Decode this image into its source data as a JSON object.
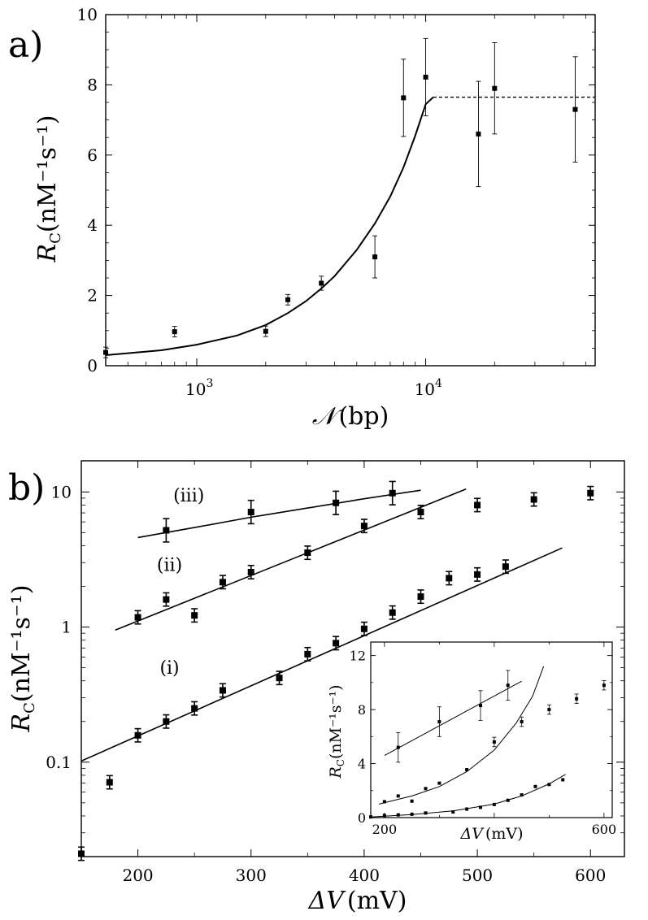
{
  "chart_data": [
    {
      "panel_label": "a)",
      "type": "scatter",
      "x_scale": "log",
      "xlabel": "𝒩 (bp)",
      "xlabel_symbol": "𝒩",
      "xlabel_unit": "(bp)",
      "ylabel_symbol": "R",
      "ylabel_sub": "C",
      "ylabel_unit": "(nM⁻¹s⁻¹)",
      "xlim": [
        400,
        55000
      ],
      "ylim": [
        0,
        10
      ],
      "yticks": [
        "0",
        "2",
        "4",
        "6",
        "8",
        "10"
      ],
      "xticks": [
        {
          "base": "10",
          "exp": "3",
          "value": 1000
        },
        {
          "base": "10",
          "exp": "4",
          "value": 10000
        }
      ],
      "grid": false,
      "points": [
        {
          "x": 400,
          "y": 0.38,
          "err": 0.15
        },
        {
          "x": 800,
          "y": 0.97,
          "err": 0.15
        },
        {
          "x": 2000,
          "y": 0.98,
          "err": 0.15
        },
        {
          "x": 2500,
          "y": 1.88,
          "err": 0.15
        },
        {
          "x": 3500,
          "y": 2.35,
          "err": 0.2
        },
        {
          "x": 6000,
          "y": 3.1,
          "err": 0.6
        },
        {
          "x": 8000,
          "y": 7.63,
          "err": 1.1
        },
        {
          "x": 10000,
          "y": 8.22,
          "err": 1.1
        },
        {
          "x": 17000,
          "y": 6.6,
          "err": 1.5
        },
        {
          "x": 20000,
          "y": 7.9,
          "err": 1.3
        },
        {
          "x": 45000,
          "y": 7.3,
          "err": 1.5
        }
      ],
      "fit_curve": [
        {
          "x": 400,
          "y": 0.3
        },
        {
          "x": 700,
          "y": 0.44
        },
        {
          "x": 1000,
          "y": 0.6
        },
        {
          "x": 1500,
          "y": 0.86
        },
        {
          "x": 2000,
          "y": 1.16
        },
        {
          "x": 2500,
          "y": 1.5
        },
        {
          "x": 3000,
          "y": 1.84
        },
        {
          "x": 3500,
          "y": 2.2
        },
        {
          "x": 4000,
          "y": 2.55
        },
        {
          "x": 5000,
          "y": 3.3
        },
        {
          "x": 6000,
          "y": 4.05
        },
        {
          "x": 7000,
          "y": 4.82
        },
        {
          "x": 8000,
          "y": 5.65
        },
        {
          "x": 9000,
          "y": 6.55
        },
        {
          "x": 10000,
          "y": 7.45
        },
        {
          "x": 10800,
          "y": 7.65
        }
      ],
      "plateau": {
        "value": 7.65,
        "x_start": 10800,
        "x_end": 55000,
        "style": "dashed"
      }
    },
    {
      "panel_label": "b)",
      "type": "scatter",
      "y_scale": "log",
      "xlabel_symbol": "ΔV",
      "xlabel_unit": "(mV)",
      "ylabel_symbol": "R",
      "ylabel_sub": "C",
      "ylabel_unit": "(nM⁻¹s⁻¹)",
      "xlim": [
        150,
        630
      ],
      "ylim": [
        0.02,
        17
      ],
      "xticks": [
        "200",
        "300",
        "400",
        "500",
        "600"
      ],
      "yticks": [
        {
          "label": "0.1",
          "value": 0.1
        },
        {
          "label": "1",
          "value": 1
        },
        {
          "label": "10",
          "value": 10
        }
      ],
      "grid": false,
      "series": [
        {
          "name": "(i)",
          "label_at": {
            "x": 228,
            "y": 0.45
          },
          "points": [
            {
              "x": 150,
              "y": 0.021
            },
            {
              "x": 175,
              "y": 0.071
            },
            {
              "x": 200,
              "y": 0.158
            },
            {
              "x": 225,
              "y": 0.2
            },
            {
              "x": 250,
              "y": 0.25
            },
            {
              "x": 275,
              "y": 0.34
            },
            {
              "x": 325,
              "y": 0.42
            },
            {
              "x": 350,
              "y": 0.63
            },
            {
              "x": 375,
              "y": 0.76
            },
            {
              "x": 400,
              "y": 0.97
            },
            {
              "x": 425,
              "y": 1.28
            },
            {
              "x": 450,
              "y": 1.68
            },
            {
              "x": 475,
              "y": 2.3
            },
            {
              "x": 500,
              "y": 2.45
            },
            {
              "x": 525,
              "y": 2.8
            }
          ],
          "fit": [
            {
              "x": 150,
              "y": 0.102
            },
            {
              "x": 575,
              "y": 3.85
            }
          ]
        },
        {
          "name": "(ii)",
          "label_at": {
            "x": 228,
            "y": 2.6
          },
          "points": [
            {
              "x": 200,
              "y": 1.18
            },
            {
              "x": 225,
              "y": 1.6
            },
            {
              "x": 250,
              "y": 1.22
            },
            {
              "x": 275,
              "y": 2.15
            },
            {
              "x": 300,
              "y": 2.55
            },
            {
              "x": 350,
              "y": 3.55
            },
            {
              "x": 400,
              "y": 5.6
            },
            {
              "x": 450,
              "y": 7.1
            },
            {
              "x": 500,
              "y": 8.0
            },
            {
              "x": 550,
              "y": 8.8
            },
            {
              "x": 600,
              "y": 9.8
            }
          ],
          "fit": [
            {
              "x": 180,
              "y": 0.95
            },
            {
              "x": 490,
              "y": 10.5
            }
          ]
        },
        {
          "name": "(iii)",
          "label_at": {
            "x": 245,
            "y": 8.5
          },
          "points": [
            {
              "x": 225,
              "y": 5.2
            },
            {
              "x": 300,
              "y": 7.1
            },
            {
              "x": 375,
              "y": 8.3
            },
            {
              "x": 425,
              "y": 9.8
            }
          ],
          "fit": [
            {
              "x": 200,
              "y": 4.6
            },
            {
              "x": 250,
              "y": 5.45
            },
            {
              "x": 300,
              "y": 6.5
            },
            {
              "x": 350,
              "y": 7.6
            },
            {
              "x": 400,
              "y": 8.9
            },
            {
              "x": 450,
              "y": 10.3
            }
          ]
        }
      ],
      "inset": {
        "type": "scatter",
        "xlabel_symbol": "ΔV",
        "xlabel_unit": "(mV)",
        "ylabel_symbol": "R",
        "ylabel_sub": "C",
        "ylabel_unit": "(nM⁻¹s⁻¹)",
        "xlim": [
          175,
          615
        ],
        "ylim": [
          0,
          13
        ],
        "xticks": [
          "200",
          "600"
        ],
        "yticks": [
          "0",
          "4",
          "8",
          "12"
        ],
        "series": [
          {
            "name": "(i)",
            "points": [
              {
                "x": 175,
                "y": 0.05
              },
              {
                "x": 200,
                "y": 0.16
              },
              {
                "x": 225,
                "y": 0.2
              },
              {
                "x": 250,
                "y": 0.25
              },
              {
                "x": 275,
                "y": 0.34
              },
              {
                "x": 325,
                "y": 0.42
              },
              {
                "x": 350,
                "y": 0.63
              },
              {
                "x": 375,
                "y": 0.76
              },
              {
                "x": 400,
                "y": 0.97
              },
              {
                "x": 425,
                "y": 1.28
              },
              {
                "x": 450,
                "y": 1.68
              },
              {
                "x": 475,
                "y": 2.3
              },
              {
                "x": 500,
                "y": 2.45
              },
              {
                "x": 525,
                "y": 2.8
              }
            ],
            "fit": [
              {
                "x": 175,
                "y": 0.05
              },
              {
                "x": 250,
                "y": 0.22
              },
              {
                "x": 325,
                "y": 0.5
              },
              {
                "x": 400,
                "y": 1.0
              },
              {
                "x": 450,
                "y": 1.6
              },
              {
                "x": 500,
                "y": 2.5
              },
              {
                "x": 530,
                "y": 3.2
              }
            ]
          },
          {
            "name": "(ii)",
            "points": [
              {
                "x": 200,
                "y": 1.18
              },
              {
                "x": 225,
                "y": 1.6
              },
              {
                "x": 250,
                "y": 1.22
              },
              {
                "x": 275,
                "y": 2.15
              },
              {
                "x": 300,
                "y": 2.55
              },
              {
                "x": 350,
                "y": 3.55
              },
              {
                "x": 400,
                "y": 5.6
              },
              {
                "x": 450,
                "y": 7.1
              },
              {
                "x": 500,
                "y": 8.0
              },
              {
                "x": 550,
                "y": 8.8
              },
              {
                "x": 600,
                "y": 9.8
              }
            ],
            "fit": [
              {
                "x": 190,
                "y": 1.0
              },
              {
                "x": 250,
                "y": 1.6
              },
              {
                "x": 300,
                "y": 2.3
              },
              {
                "x": 350,
                "y": 3.4
              },
              {
                "x": 400,
                "y": 5.0
              },
              {
                "x": 440,
                "y": 7.0
              },
              {
                "x": 470,
                "y": 9.0
              },
              {
                "x": 490,
                "y": 11.2
              }
            ]
          },
          {
            "name": "(iii)",
            "points": [
              {
                "x": 225,
                "y": 5.2
              },
              {
                "x": 300,
                "y": 7.1
              },
              {
                "x": 375,
                "y": 8.3
              },
              {
                "x": 425,
                "y": 9.8
              }
            ],
            "fit": [
              {
                "x": 200,
                "y": 4.6
              },
              {
                "x": 450,
                "y": 10.1
              }
            ]
          }
        ]
      }
    }
  ]
}
